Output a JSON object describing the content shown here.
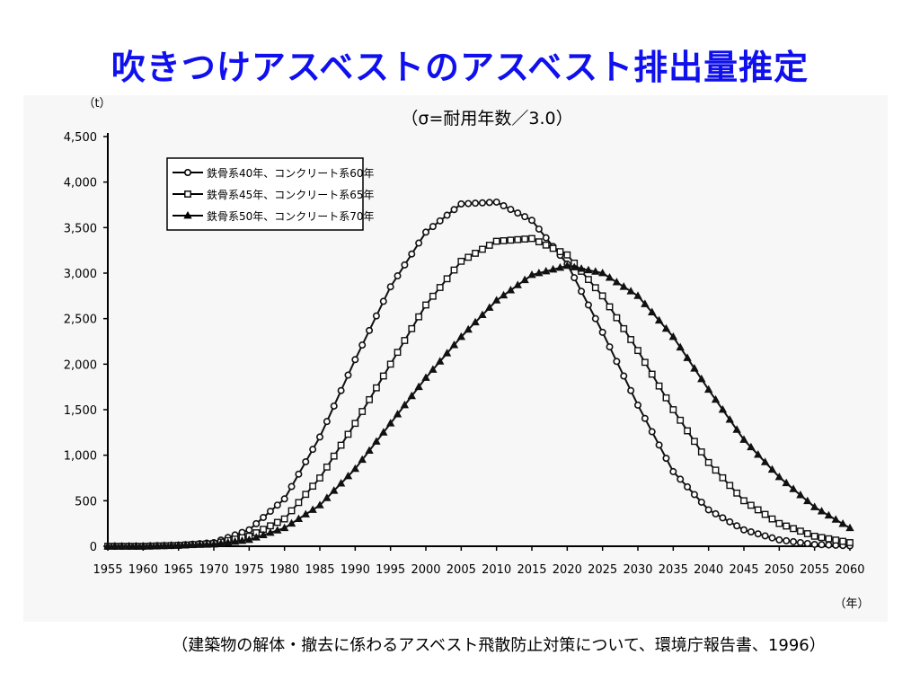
{
  "slide": {
    "title": "吹きつけアスベストのアスベスト排出量推定",
    "source_note": "（建築物の解体・撤去に係わるアスベスト飛散防止対策について、環境庁報告書、1996）"
  },
  "chart_data": {
    "type": "line",
    "subtitle": "（σ=耐用年数／3.0）",
    "y_unit_label": "（t）",
    "x_unit_label": "（年）",
    "ylim": [
      0,
      4500
    ],
    "y_ticks": [
      0,
      500,
      1000,
      1500,
      2000,
      2500,
      3000,
      3500,
      4000,
      4500
    ],
    "y_tick_labels": [
      "0",
      "500",
      "1,000",
      "1,500",
      "2,000",
      "2,500",
      "3,000",
      "3,500",
      "4,000",
      "4,500"
    ],
    "xlim": [
      1955,
      2060
    ],
    "x_ticks": [
      1955,
      1960,
      1965,
      1970,
      1975,
      1980,
      1985,
      1990,
      1995,
      2000,
      2005,
      2010,
      2015,
      2020,
      2025,
      2030,
      2035,
      2040,
      2045,
      2050,
      2055,
      2060
    ],
    "x": [
      1955,
      1960,
      1965,
      1970,
      1975,
      1980,
      1985,
      1990,
      1995,
      2000,
      2005,
      2010,
      2015,
      2020,
      2025,
      2030,
      2035,
      2040,
      2045,
      2050,
      2055,
      2060
    ],
    "legend_position": "top-left",
    "grid": false,
    "series": [
      {
        "name": "鉄骨系40年、コンクリート系60年",
        "marker": "circle",
        "color": "#111111",
        "values": [
          0,
          0,
          10,
          40,
          180,
          520,
          1200,
          2050,
          2850,
          3450,
          3760,
          3780,
          3580,
          3100,
          2350,
          1550,
          820,
          400,
          180,
          70,
          20,
          5
        ]
      },
      {
        "name": "鉄骨系45年、コンクリート系65年",
        "marker": "square",
        "color": "#111111",
        "values": [
          0,
          0,
          10,
          30,
          110,
          300,
          750,
          1350,
          2000,
          2650,
          3130,
          3350,
          3380,
          3200,
          2750,
          2150,
          1500,
          920,
          500,
          250,
          110,
          40
        ]
      },
      {
        "name": "鉄骨系50年、コンクリート系70年",
        "marker": "triangle",
        "color": "#111111",
        "values": [
          0,
          0,
          10,
          20,
          70,
          200,
          450,
          850,
          1350,
          1850,
          2300,
          2700,
          2980,
          3080,
          3000,
          2750,
          2300,
          1720,
          1170,
          760,
          430,
          200
        ]
      }
    ]
  }
}
